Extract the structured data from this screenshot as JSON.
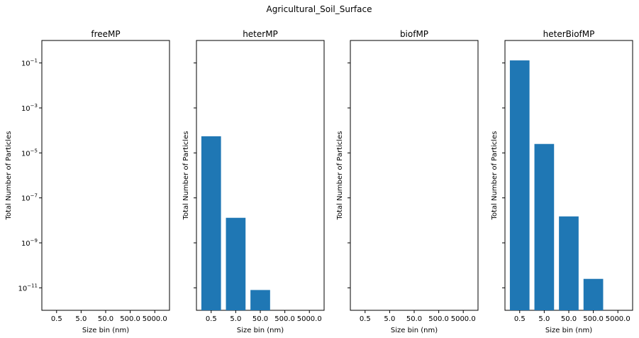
{
  "figure": {
    "suptitle": "Agricultural_Soil_Surface"
  },
  "colors": {
    "bar": "#1f77b4",
    "axis": "#000000",
    "background": "#ffffff"
  },
  "chart_data": [
    {
      "type": "bar",
      "title": "freeMP",
      "xlabel": "Size bin (nm)",
      "ylabel": "Total Number of Particles",
      "yscale": "log",
      "ylim": [
        1e-12,
        1
      ],
      "categories": [
        "0.5",
        "5.0",
        "50.0",
        "500.0",
        "5000.0"
      ],
      "values": [
        null,
        null,
        null,
        null,
        null
      ],
      "yticks": [
        0.1,
        0.001,
        1e-05,
        1e-07,
        1e-09,
        1e-11
      ],
      "ytick_labels": [
        {
          "base": "10",
          "exp": "−1"
        },
        {
          "base": "10",
          "exp": "−3"
        },
        {
          "base": "10",
          "exp": "−5"
        },
        {
          "base": "10",
          "exp": "−7"
        },
        {
          "base": "10",
          "exp": "−9"
        },
        {
          "base": "10",
          "exp": "−11"
        }
      ],
      "show_ytick_labels": true
    },
    {
      "type": "bar",
      "title": "heterMP",
      "xlabel": "Size bin (nm)",
      "ylabel": "Total Number of Particles",
      "yscale": "log",
      "ylim": [
        1e-12,
        1
      ],
      "categories": [
        "0.5",
        "5.0",
        "50.0",
        "500.0",
        "5000.0"
      ],
      "values": [
        5.5e-05,
        1.3e-08,
        8e-12,
        null,
        null
      ],
      "yticks": [
        0.1,
        0.001,
        1e-05,
        1e-07,
        1e-09,
        1e-11
      ],
      "show_ytick_labels": false
    },
    {
      "type": "bar",
      "title": "biofMP",
      "xlabel": "Size bin (nm)",
      "ylabel": "Total Number of Particles",
      "yscale": "log",
      "ylim": [
        1e-12,
        1
      ],
      "categories": [
        "0.5",
        "5.0",
        "50.0",
        "500.0",
        "5000.0"
      ],
      "values": [
        null,
        null,
        null,
        null,
        null
      ],
      "yticks": [
        0.1,
        0.001,
        1e-05,
        1e-07,
        1e-09,
        1e-11
      ],
      "show_ytick_labels": false
    },
    {
      "type": "bar",
      "title": "heterBiofMP",
      "xlabel": "Size bin (nm)",
      "ylabel": "Total Number of Particles",
      "yscale": "log",
      "ylim": [
        1e-12,
        1
      ],
      "categories": [
        "0.5",
        "5.0",
        "50.0",
        "500.0",
        "5000.0"
      ],
      "values": [
        0.13,
        2.5e-05,
        1.5e-08,
        2.5e-11,
        8e-13
      ],
      "yticks": [
        0.1,
        0.001,
        1e-05,
        1e-07,
        1e-09,
        1e-11
      ],
      "show_ytick_labels": false
    }
  ]
}
